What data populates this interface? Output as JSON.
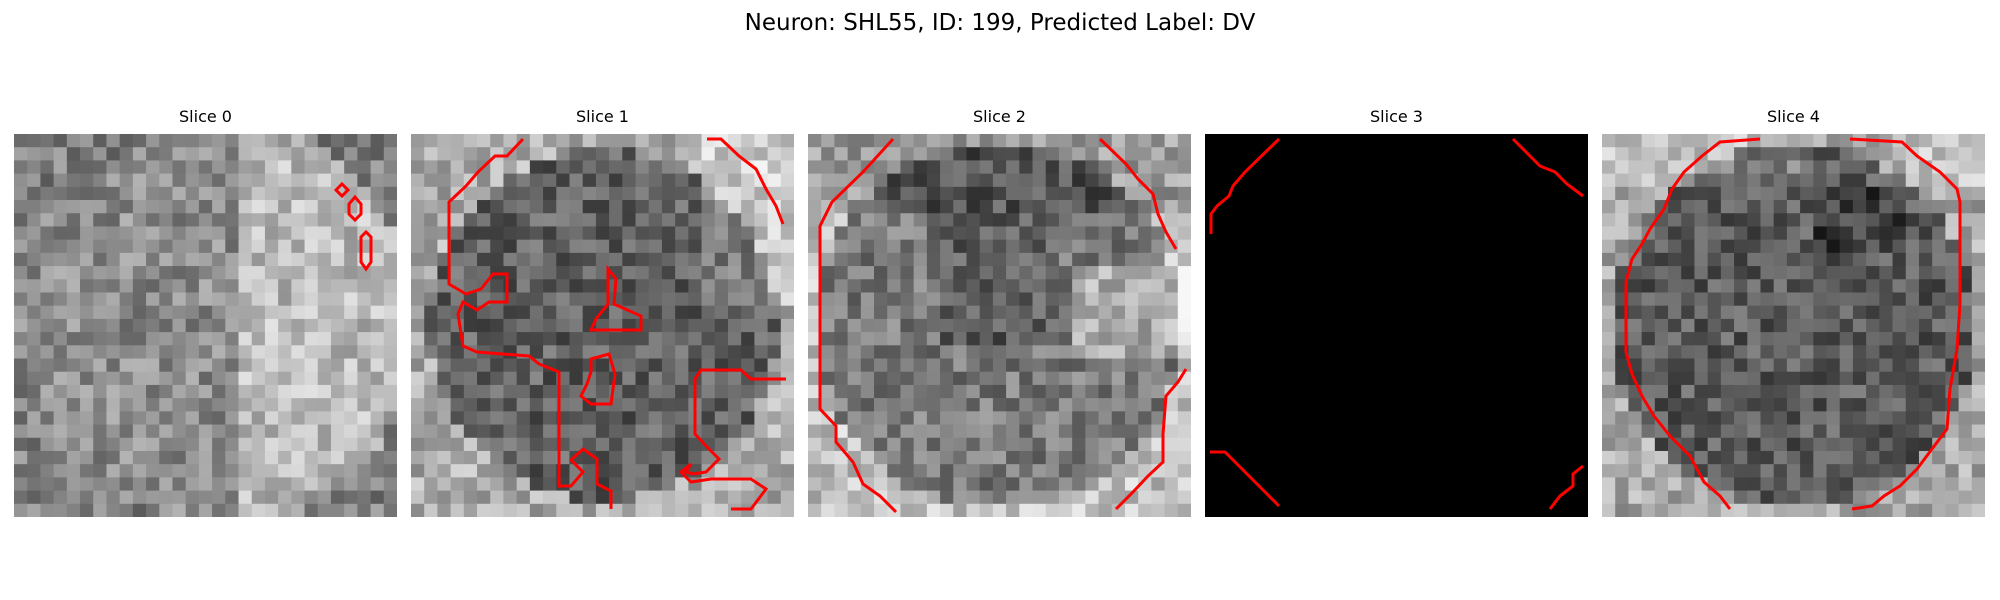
{
  "figure": {
    "title": "Neuron: SHL55, ID: 199, Predicted Label: DV"
  },
  "panels": [
    {
      "title": "Slice 0",
      "image": "grayscale-fluorescence-crop",
      "contour_color": "#ff0000"
    },
    {
      "title": "Slice 1",
      "image": "grayscale-fluorescence-crop",
      "contour_color": "#ff0000"
    },
    {
      "title": "Slice 2",
      "image": "grayscale-fluorescence-crop",
      "contour_color": "#ff0000"
    },
    {
      "title": "Slice 3",
      "image": "black-empty-crop",
      "contour_color": "#ff0000"
    },
    {
      "title": "Slice 4",
      "image": "grayscale-fluorescence-crop",
      "contour_color": "#ff0000"
    }
  ]
}
